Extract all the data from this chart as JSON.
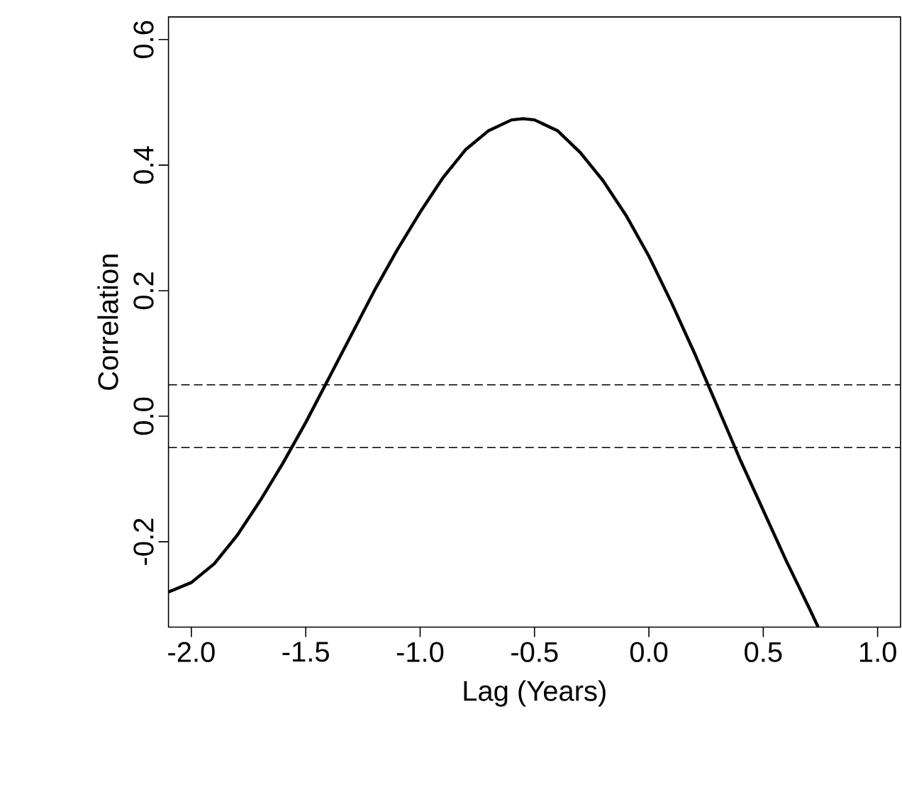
{
  "chart_data": {
    "type": "line",
    "xlabel": "Lag (Years)",
    "ylabel": "Correlation",
    "xlim": [
      -2.1,
      1.1
    ],
    "ylim": [
      -0.336,
      0.636
    ],
    "xticks": [
      {
        "value": -2,
        "label": "-2.0"
      },
      {
        "value": -1.5,
        "label": "-1.5"
      },
      {
        "value": -1,
        "label": "-1.0"
      },
      {
        "value": -0.5,
        "label": "-0.5"
      },
      {
        "value": 0,
        "label": "0.0"
      },
      {
        "value": 0.5,
        "label": "0.5"
      },
      {
        "value": 1,
        "label": "1.0"
      }
    ],
    "yticks": [
      {
        "value": -0.2,
        "label": "-0.2"
      },
      {
        "value": 0,
        "label": "0.0"
      },
      {
        "value": 0.2,
        "label": "0.2"
      },
      {
        "value": 0.4,
        "label": "0.4"
      },
      {
        "value": 0.6,
        "label": "0.6"
      }
    ],
    "x": [
      -2.1,
      -2.0,
      -1.9,
      -1.8,
      -1.7,
      -1.6,
      -1.5,
      -1.4,
      -1.3,
      -1.2,
      -1.1,
      -1.0,
      -0.9,
      -0.8,
      -0.7,
      -0.6,
      -0.55,
      -0.5,
      -0.4,
      -0.3,
      -0.2,
      -0.1,
      0.0,
      0.1,
      0.2,
      0.3,
      0.4,
      0.5,
      0.6,
      0.7,
      0.74
    ],
    "series": [
      {
        "color": "#000000",
        "values": [
          -0.28,
          -0.265,
          -0.235,
          -0.19,
          -0.135,
          -0.075,
          -0.01,
          0.06,
          0.13,
          0.2,
          0.265,
          0.325,
          0.38,
          0.425,
          0.455,
          0.472,
          0.474,
          0.472,
          0.455,
          0.42,
          0.375,
          0.32,
          0.255,
          0.18,
          0.1,
          0.015,
          -0.07,
          -0.15,
          -0.23,
          -0.305,
          -0.336
        ]
      }
    ],
    "ref_lines": [
      {
        "axis": "y",
        "value": 0.05,
        "line_style": "dashed",
        "color": "#000000"
      },
      {
        "axis": "y",
        "value": -0.05,
        "line_style": "dashed",
        "color": "#000000"
      }
    ],
    "grid": false,
    "marker": "none",
    "line_style": "solid"
  }
}
